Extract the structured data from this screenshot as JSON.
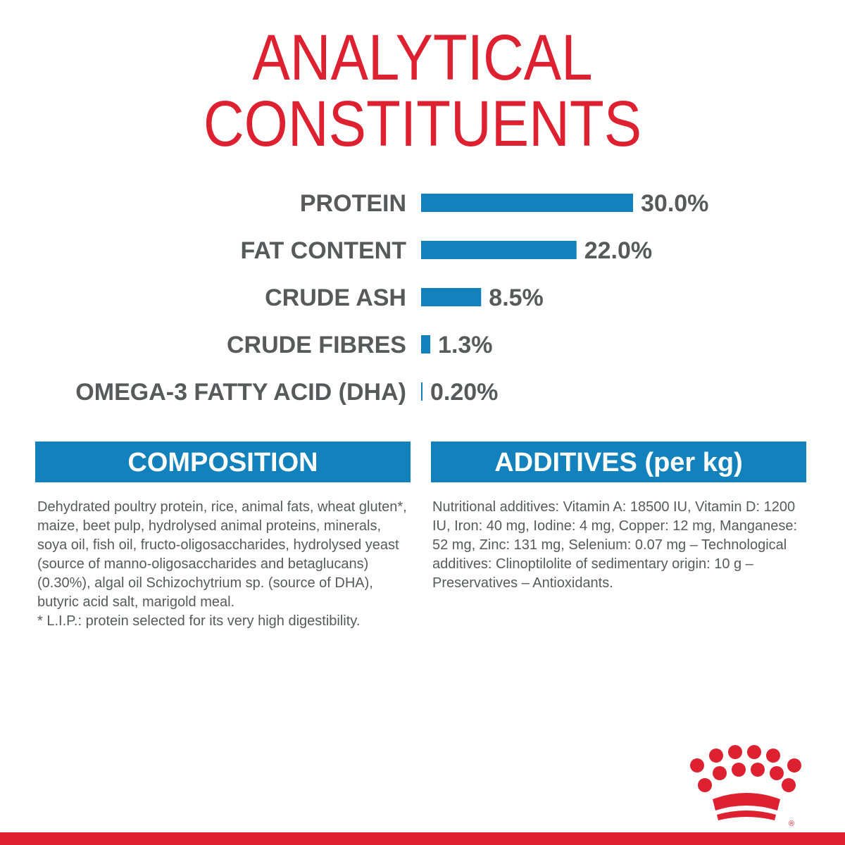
{
  "title": {
    "line1": "ANALYTICAL",
    "line2": "CONSTITUENTS"
  },
  "colors": {
    "title": "#dd2131",
    "bar": "#1281bc",
    "text": "#58595b",
    "header_bg": "#1281bc",
    "header_text": "#ffffff",
    "brand_red": "#dd2131"
  },
  "chart_data": {
    "type": "bar",
    "orientation": "horizontal",
    "categories": [
      "PROTEIN",
      "FAT CONTENT",
      "CRUDE ASH",
      "CRUDE FIBRES",
      "OMEGA-3 FATTY ACID (DHA)"
    ],
    "values": [
      30.0,
      22.0,
      8.5,
      1.3,
      0.2
    ],
    "value_labels": [
      "30.0%",
      "22.0%",
      "8.5%",
      "1.3%",
      "0.20%"
    ],
    "unit": "%",
    "xlim": [
      0,
      30
    ],
    "grid": false,
    "legend": "none"
  },
  "composition": {
    "header": "COMPOSITION",
    "lines": [
      "Dehydrated poultry protein, rice, animal fats, wheat gluten*,",
      "maize, beet pulp, hydrolysed animal proteins, minerals,",
      "soya oil, fish oil, fructo-oligosaccharides, hydrolysed yeast",
      "(source of manno-oligosaccharides and betaglucans)",
      "(0.30%), algal oil Schizochytrium sp. (source of DHA),",
      "butyric acid salt, marigold meal.",
      "* L.I.P.: protein selected for its very high digestibility."
    ]
  },
  "additives": {
    "header": "ADDITIVES (per kg)",
    "lines": [
      "Nutritional additives: Vitamin A: 18500 IU, Vitamin D: 1200",
      "IU, Iron: 40 mg, Iodine: 4 mg, Copper: 12 mg, Manganese:",
      "52 mg, Zinc: 131 mg, Selenium: 0.07 mg – Technological",
      "additives: Clinoptilolite of sedimentary origin: 10 g –",
      "Preservatives – Antioxidants."
    ]
  },
  "logo": {
    "icon": "crown-logo-icon",
    "mark": "®"
  }
}
